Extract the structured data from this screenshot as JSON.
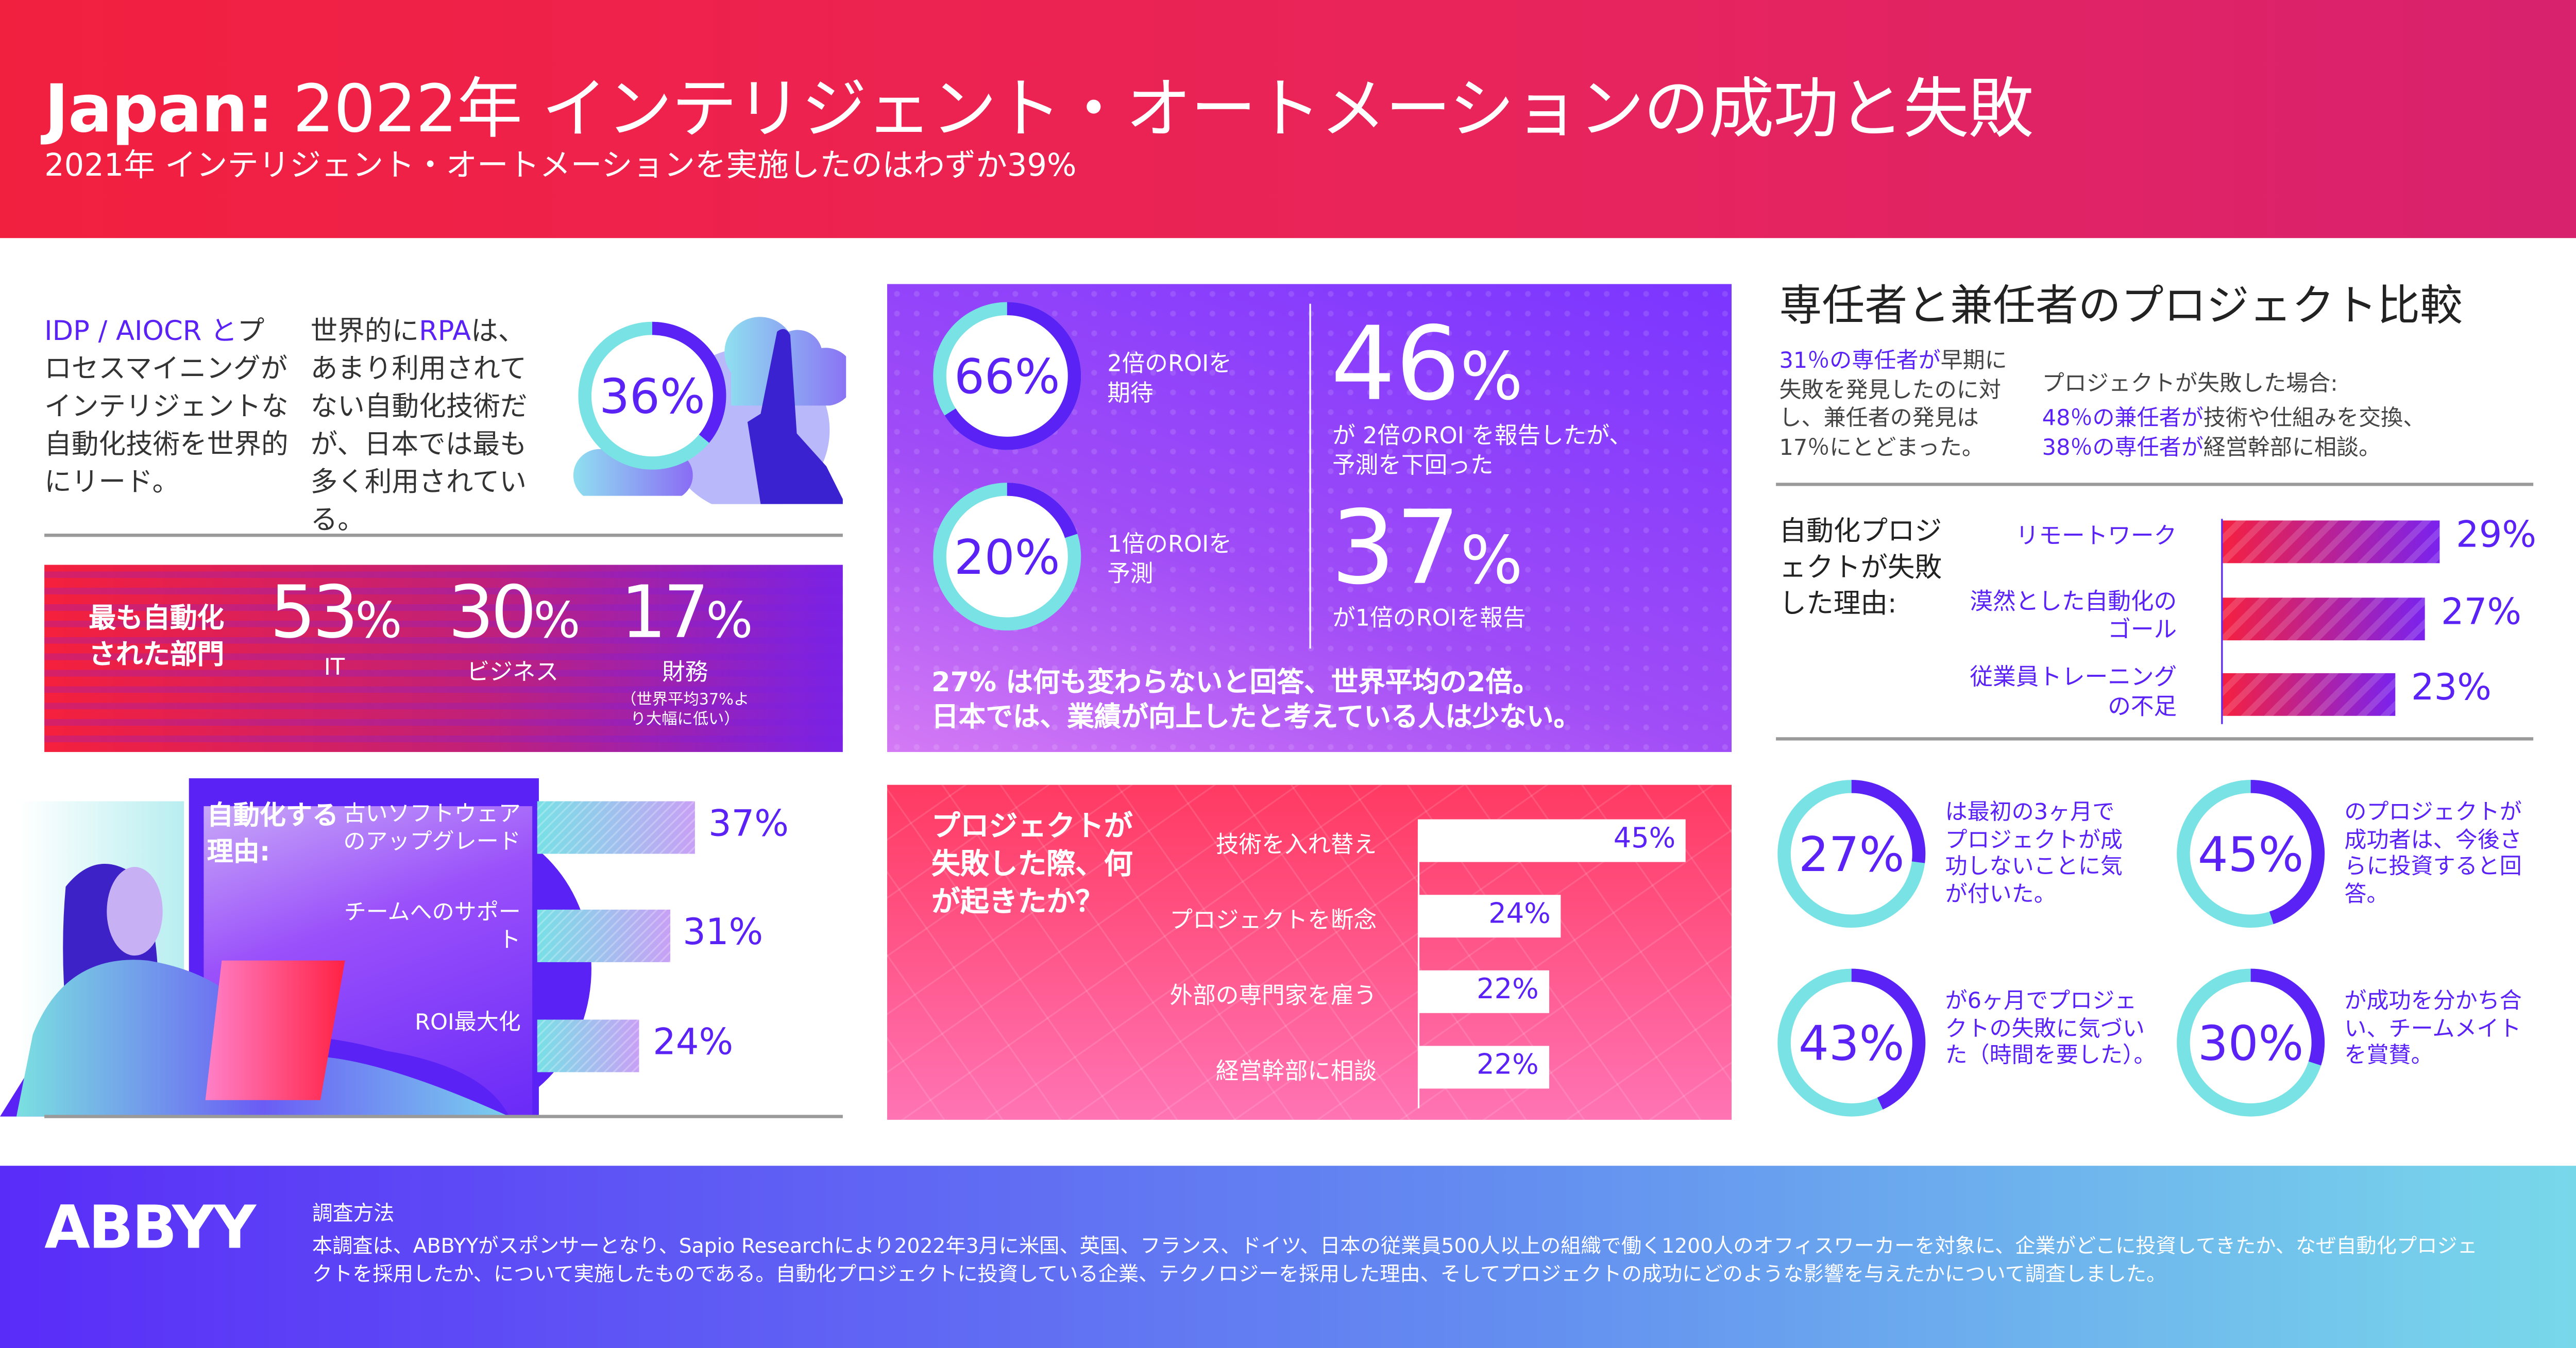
{
  "header": {
    "title_bold": "Japan:",
    "title_rest": " 2022年 インテリジェント・オートメーションの成功と失敗",
    "subtitle": "2021年 インテリジェント・オートメーションを実施したのはわずか39%"
  },
  "colors": {
    "purple": "#5a22f5",
    "teal": "#78e2e4",
    "red": "#f2203f",
    "pink": "#ff5a8a"
  },
  "left": {
    "text1_blue": "IDP / AIOCR と",
    "text1_rest": "プロセスマイニングがインテリジェントな自動化技術を世界的にリード。",
    "text2_pre": "世界的に",
    "text2_blue": "RPA",
    "text2_rest": "は、あまり利用されてない自動化技術だが、日本では最も多く利用されている。",
    "donut": {
      "value": 36,
      "label": "36%"
    },
    "illustration": "cloud-hand-icon",
    "departments": {
      "heading": "最も自動化された部門",
      "items": [
        {
          "value": "53",
          "unit": "%",
          "label": "IT"
        },
        {
          "value": "30",
          "unit": "%",
          "label": "ビジネス"
        },
        {
          "value": "17",
          "unit": "%",
          "label": "財務",
          "note": "（世界平均37%より大幅に低い）"
        }
      ]
    },
    "reasons": {
      "heading": "自動化する理由:",
      "items": [
        {
          "label": "古いソフトウェアのアップグレード",
          "value": 37,
          "text": "37%"
        },
        {
          "label": "チームへのサポート",
          "value": 31,
          "text": "31%"
        },
        {
          "label": "ROI最大化",
          "value": 24,
          "text": "24%"
        }
      ]
    }
  },
  "middle": {
    "roi": [
      {
        "value": 66,
        "label": "66%",
        "caption": "2倍のROIを期待"
      },
      {
        "value": 20,
        "label": "20%",
        "caption": "1倍のROIを予測"
      }
    ],
    "reported": [
      {
        "big": "46",
        "unit": "%",
        "caption": "が 2倍のROI を報告したが、予測を下回った"
      },
      {
        "big": "37",
        "unit": "%",
        "caption": "が1倍のROIを報告"
      }
    ],
    "bottom_line1": "27% は何も変わらないと回答、世界平均の2倍。",
    "bottom_line2": "日本では、業績が向上したと考えている人は少ない。",
    "failure": {
      "heading": "プロジェクトが失敗した際、何が起きたか？",
      "items": [
        {
          "label": "技術を入れ替え",
          "value": 45,
          "text": "45%"
        },
        {
          "label": "プロジェクトを断念",
          "value": 24,
          "text": "24%"
        },
        {
          "label": "外部の専門家を雇う",
          "value": 22,
          "text": "22%"
        },
        {
          "label": "経営幹部に相談",
          "value": 22,
          "text": "22%"
        }
      ]
    }
  },
  "right": {
    "title": "専任者と兼任者のプロジェクト比較",
    "compare_blue": "31％の専任者が",
    "compare_rest": "早期に失敗を発見したのに対し、兼任者の発見は17％にとどまった。",
    "ifFail": "プロジェクトが失敗した場合:",
    "ifFail_line1_blue": "48％の兼任者が",
    "ifFail_line1_rest": "技術や仕組みを交換、",
    "ifFail_line2_blue": "38％の専任者が",
    "ifFail_line2_rest": "経営幹部に相談。",
    "reasons": {
      "heading": "自動化プロジェクトが失敗した理由:",
      "items": [
        {
          "label": "リモートワーク",
          "value": 29,
          "text": "29%"
        },
        {
          "label": "漠然とした自動化のゴール",
          "value": 27,
          "text": "27%"
        },
        {
          "label": "従業員トレーニングの不足",
          "value": 23,
          "text": "23%"
        }
      ]
    },
    "donuts": [
      {
        "value": 27,
        "label": "27%",
        "caption": "は最初の3ヶ月でプロジェクトが成功しないことに気が付いた。"
      },
      {
        "value": 45,
        "label": "45%",
        "caption": "のプロジェクトが成功者は、今後さらに投資すると回答。"
      },
      {
        "value": 43,
        "label": "43%",
        "caption": "が6ヶ月でプロジェクトの失敗に気づいた（時間を要した）。"
      },
      {
        "value": 30,
        "label": "30%",
        "caption": "が成功を分かち合い、チームメイトを賞賛。"
      }
    ]
  },
  "footer": {
    "logo": "ABBYY",
    "method_title": "調査方法",
    "method_text": "本調査は、ABBYYがスポンサーとなり、Sapio Researchにより2022年3月に米国、英国、フランス、ドイツ、日本の従業員500人以上の組織で働く1200人のオフィスワーカーを対象に、企業がどこに投資してきたか、なぜ自動化プロジェクトを採用したか、について実施したものである。自動化プロジェクトに投資している企業、テクノロジーを採用した理由、そしてプロジェクトの成功にどのような影響を与えたかについて調査しました。"
  }
}
